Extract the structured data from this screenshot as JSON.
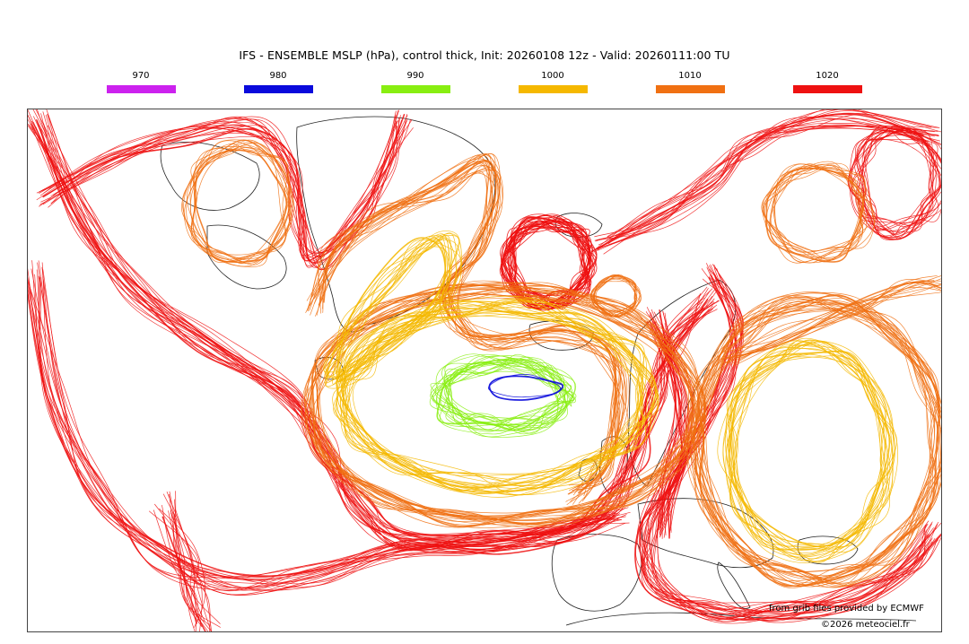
{
  "title": "IFS - ENSEMBLE MSLP (hPa), control thick, Init: 20260108 12z - Valid: 20260111:00 TU",
  "legend": [
    {
      "label": "970",
      "color": "#cc22ee"
    },
    {
      "label": "980",
      "color": "#0a0adc"
    },
    {
      "label": "990",
      "color": "#88ee11"
    },
    {
      "label": "1000",
      "color": "#f5b800"
    },
    {
      "label": "1010",
      "color": "#f07012"
    },
    {
      "label": "1020",
      "color": "#ee1111"
    }
  ],
  "credits": {
    "data_source": "from grib files provided by ECMWF",
    "copyright": "©2026 meteociel.fr"
  }
}
